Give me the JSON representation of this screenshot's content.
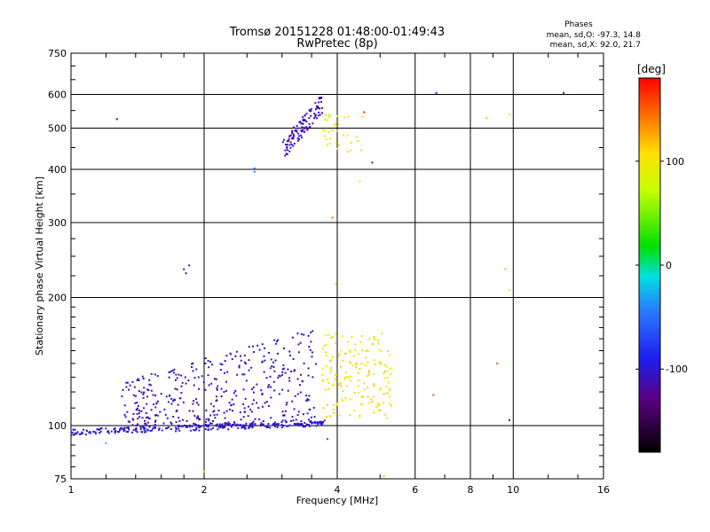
{
  "chart_data": {
    "type": "scatter",
    "title": "Tromsø 20151228 01:48:00-01:49:43",
    "subtitle": "RwPretec (8p)",
    "xlabel": "Frequency [MHz]",
    "ylabel": "Stationary phase Virtual Height [km]",
    "x_scale": "log",
    "y_scale": "log",
    "xlim": [
      1,
      16
    ],
    "ylim": [
      75,
      750
    ],
    "x_ticks": [
      1,
      2,
      4,
      6,
      8,
      10,
      16
    ],
    "y_ticks": [
      75,
      100,
      200,
      300,
      400,
      500,
      600,
      750
    ],
    "grid": true,
    "stats": {
      "heading": "Phases",
      "line_o": "mean, sd,O:  -97.3, 14.8",
      "line_x": "mean, sd,X:  92.0, 21.7"
    },
    "colorbar": {
      "title": "[deg]",
      "ticks": [
        100,
        0,
        -100
      ],
      "range": [
        -180,
        180
      ]
    },
    "clusters": [
      {
        "description": "",
        "x_range": [
          1.0,
          3.8
        ],
        "y_range": [
          95,
          104
        ],
        "phase": -100
      },
      {
        "description": "",
        "x_range": [
          1.3,
          3.6
        ],
        "y_range": [
          100,
          170
        ],
        "phase": -110
      },
      {
        "description": "",
        "x_range": [
          3.7,
          5.3
        ],
        "y_range": [
          104,
          165
        ],
        "phase": 100
      },
      {
        "description": "",
        "x_range": [
          3.0,
          3.7
        ],
        "y_range": [
          420,
          600
        ],
        "phase": -110
      },
      {
        "description": "",
        "x_range": [
          3.7,
          4.6
        ],
        "y_range": [
          440,
          540
        ],
        "phase": 90
      }
    ],
    "points": [
      {
        "x": 1.27,
        "y": 525,
        "phase": -120
      },
      {
        "x": 2.6,
        "y": 395,
        "phase": -40
      },
      {
        "x": 2.6,
        "y": 402,
        "phase": -60
      },
      {
        "x": 1.8,
        "y": 233,
        "phase": -110
      },
      {
        "x": 1.85,
        "y": 238,
        "phase": -110
      },
      {
        "x": 1.82,
        "y": 228,
        "phase": -110
      },
      {
        "x": 3.9,
        "y": 308,
        "phase": 140
      },
      {
        "x": 3.97,
        "y": 215,
        "phase": 110
      },
      {
        "x": 4.5,
        "y": 375,
        "phase": 100
      },
      {
        "x": 4.6,
        "y": 545,
        "phase": 170
      },
      {
        "x": 4.8,
        "y": 415,
        "phase": -110
      },
      {
        "x": 6.7,
        "y": 605,
        "phase": -100
      },
      {
        "x": 8.7,
        "y": 528,
        "phase": 60
      },
      {
        "x": 9.8,
        "y": 538,
        "phase": 100
      },
      {
        "x": 9.6,
        "y": 233,
        "phase": 120
      },
      {
        "x": 9.8,
        "y": 208,
        "phase": 100
      },
      {
        "x": 9.2,
        "y": 140,
        "phase": 150
      },
      {
        "x": 6.6,
        "y": 118,
        "phase": 150
      },
      {
        "x": 9.8,
        "y": 103,
        "phase": -100
      },
      {
        "x": 13.0,
        "y": 605,
        "phase": -100
      },
      {
        "x": 3.8,
        "y": 93,
        "phase": 170
      },
      {
        "x": 5.1,
        "y": 76,
        "phase": 50
      },
      {
        "x": 1.2,
        "y": 91,
        "phase": 10
      },
      {
        "x": 2.0,
        "y": 78,
        "phase": 110
      }
    ]
  }
}
